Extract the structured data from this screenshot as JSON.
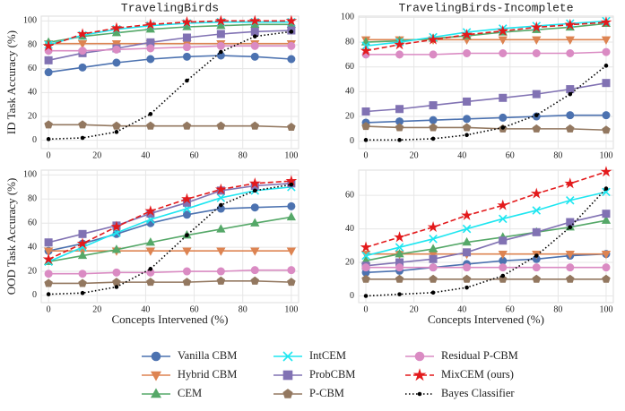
{
  "chart_data": [
    {
      "type": "line",
      "title": "TravelingBirds",
      "ylabel": "ID Task Accuracy (%)",
      "x": [
        0,
        14,
        28,
        42,
        57,
        71,
        85,
        100
      ],
      "xlim": [
        -3,
        103
      ],
      "xticks": [
        0,
        20,
        40,
        60,
        80,
        100
      ],
      "ylim": [
        -7,
        104
      ],
      "yticks": [
        0,
        20,
        40,
        60,
        80,
        100
      ],
      "grid": true,
      "series": [
        {
          "name": "Vanilla CBM",
          "color": "#4c72b0",
          "marker": "circle",
          "linestyle": "solid",
          "values": [
            57,
            61,
            65,
            68,
            70,
            71,
            70,
            68
          ]
        },
        {
          "name": "Hybrid CBM",
          "color": "#dd8452",
          "marker": "triangle-down",
          "linestyle": "solid",
          "values": [
            81,
            81,
            81,
            81,
            81,
            81,
            81,
            81
          ]
        },
        {
          "name": "CEM",
          "color": "#55a868",
          "marker": "triangle-up",
          "linestyle": "solid",
          "values": [
            82,
            87,
            90,
            93,
            95,
            96,
            97,
            97
          ]
        },
        {
          "name": "IntCEM",
          "color": "#1ee6f0",
          "marker": "x",
          "linestyle": "solid",
          "values": [
            80,
            88,
            93,
            96,
            98,
            99,
            99,
            99
          ]
        },
        {
          "name": "ProbCBM",
          "color": "#8172b3",
          "marker": "square",
          "linestyle": "solid",
          "values": [
            67,
            73,
            77,
            82,
            86,
            89,
            91,
            92
          ]
        },
        {
          "name": "P-CBM",
          "color": "#937860",
          "marker": "pentagon",
          "linestyle": "solid",
          "values": [
            13,
            13,
            12,
            12,
            12,
            12,
            12,
            11
          ]
        },
        {
          "name": "Residual P-CBM",
          "color": "#da8bc3",
          "marker": "circle",
          "linestyle": "solid",
          "values": [
            75,
            75,
            76,
            77,
            78,
            79,
            79,
            79
          ]
        },
        {
          "name": "MixCEM (ours)",
          "color": "#e31a1c",
          "marker": "star",
          "linestyle": "dashed",
          "values": [
            79,
            89,
            94,
            97,
            99,
            100,
            100,
            100
          ]
        },
        {
          "name": "Bayes Classifier",
          "color": "#000000",
          "marker": "dot",
          "linestyle": "dotted",
          "values": [
            1,
            2,
            7,
            22,
            50,
            74,
            87,
            91
          ]
        }
      ]
    },
    {
      "type": "line",
      "title": "TravelingBirds-Incomplete",
      "x": [
        0,
        14,
        28,
        42,
        57,
        71,
        85,
        100
      ],
      "xlim": [
        -3,
        103
      ],
      "xticks": [
        0,
        20,
        40,
        60,
        80,
        100
      ],
      "ylim": [
        -6,
        101
      ],
      "yticks": [
        0,
        20,
        40,
        60,
        80,
        100
      ],
      "grid": true,
      "series": [
        {
          "name": "Vanilla CBM",
          "color": "#4c72b0",
          "marker": "circle",
          "linestyle": "solid",
          "values": [
            15,
            16,
            17,
            18,
            19,
            20,
            21,
            21
          ]
        },
        {
          "name": "Hybrid CBM",
          "color": "#dd8452",
          "marker": "triangle-down",
          "linestyle": "solid",
          "values": [
            82,
            82,
            82,
            82,
            82,
            82,
            82,
            82
          ]
        },
        {
          "name": "CEM",
          "color": "#55a868",
          "marker": "triangle-up",
          "linestyle": "solid",
          "values": [
            80,
            81,
            83,
            85,
            88,
            90,
            92,
            95
          ]
        },
        {
          "name": "IntCEM",
          "color": "#1ee6f0",
          "marker": "x",
          "linestyle": "solid",
          "values": [
            77,
            80,
            84,
            88,
            91,
            93,
            95,
            97
          ]
        },
        {
          "name": "ProbCBM",
          "color": "#8172b3",
          "marker": "square",
          "linestyle": "solid",
          "values": [
            24,
            26,
            29,
            32,
            35,
            38,
            42,
            47
          ]
        },
        {
          "name": "P-CBM",
          "color": "#937860",
          "marker": "pentagon",
          "linestyle": "solid",
          "values": [
            12,
            11,
            11,
            11,
            10,
            10,
            10,
            9
          ]
        },
        {
          "name": "Residual P-CBM",
          "color": "#da8bc3",
          "marker": "circle",
          "linestyle": "solid",
          "values": [
            70,
            70,
            70,
            71,
            71,
            71,
            71,
            72
          ]
        },
        {
          "name": "MixCEM (ours)",
          "color": "#e31a1c",
          "marker": "star",
          "linestyle": "dashed",
          "values": [
            73,
            78,
            82,
            86,
            89,
            92,
            94,
            96
          ]
        },
        {
          "name": "Bayes Classifier",
          "color": "#000000",
          "marker": "dot",
          "linestyle": "dotted",
          "values": [
            1,
            1,
            2,
            5,
            11,
            21,
            38,
            61
          ]
        }
      ]
    },
    {
      "type": "line",
      "ylabel": "OOD Task Accuracy (%)",
      "xlabel": "Concepts Intervened (%)",
      "x": [
        0,
        14,
        28,
        42,
        57,
        71,
        85,
        100
      ],
      "xlim": [
        -3,
        103
      ],
      "xticks": [
        0,
        20,
        40,
        60,
        80,
        100
      ],
      "ylim": [
        -6,
        104
      ],
      "yticks": [
        0,
        20,
        40,
        60,
        80,
        100
      ],
      "grid": true,
      "series": [
        {
          "name": "Vanilla CBM",
          "color": "#4c72b0",
          "marker": "circle",
          "linestyle": "solid",
          "values": [
            37,
            43,
            51,
            60,
            67,
            72,
            73,
            74
          ]
        },
        {
          "name": "Hybrid CBM",
          "color": "#dd8452",
          "marker": "triangle-down",
          "linestyle": "solid",
          "values": [
            37,
            37,
            37,
            37,
            37,
            37,
            37,
            37
          ]
        },
        {
          "name": "CEM",
          "color": "#55a868",
          "marker": "triangle-up",
          "linestyle": "solid",
          "values": [
            28,
            33,
            38,
            44,
            50,
            55,
            60,
            65
          ]
        },
        {
          "name": "IntCEM",
          "color": "#1ee6f0",
          "marker": "x",
          "linestyle": "solid",
          "values": [
            28,
            40,
            52,
            63,
            72,
            81,
            87,
            90
          ]
        },
        {
          "name": "ProbCBM",
          "color": "#8172b3",
          "marker": "square",
          "linestyle": "solid",
          "values": [
            44,
            51,
            58,
            68,
            77,
            87,
            91,
            93
          ]
        },
        {
          "name": "P-CBM",
          "color": "#937860",
          "marker": "pentagon",
          "linestyle": "solid",
          "values": [
            10,
            10,
            11,
            11,
            11,
            12,
            12,
            11
          ]
        },
        {
          "name": "Residual P-CBM",
          "color": "#da8bc3",
          "marker": "circle",
          "linestyle": "solid",
          "values": [
            18,
            18,
            19,
            19,
            20,
            20,
            21,
            21
          ]
        },
        {
          "name": "MixCEM (ours)",
          "color": "#e31a1c",
          "marker": "star",
          "linestyle": "dashed",
          "values": [
            30,
            43,
            57,
            70,
            80,
            88,
            93,
            95
          ]
        },
        {
          "name": "Bayes Classifier",
          "color": "#000000",
          "marker": "dot",
          "linestyle": "dotted",
          "values": [
            1,
            2,
            7,
            22,
            50,
            75,
            87,
            92
          ]
        }
      ]
    },
    {
      "type": "line",
      "xlabel": "Concepts Intervened (%)",
      "x": [
        0,
        14,
        28,
        42,
        57,
        71,
        85,
        100
      ],
      "xlim": [
        -3,
        103
      ],
      "xticks": [
        0,
        20,
        40,
        60,
        80,
        100
      ],
      "ylim": [
        -4,
        75
      ],
      "yticks": [
        0,
        20,
        40,
        60
      ],
      "grid": true,
      "series": [
        {
          "name": "Vanilla CBM",
          "color": "#4c72b0",
          "marker": "circle",
          "linestyle": "solid",
          "values": [
            14,
            15,
            17,
            19,
            21,
            22,
            24,
            25
          ]
        },
        {
          "name": "Hybrid CBM",
          "color": "#dd8452",
          "marker": "triangle-down",
          "linestyle": "solid",
          "values": [
            25,
            25,
            25,
            25,
            25,
            25,
            25,
            25
          ]
        },
        {
          "name": "CEM",
          "color": "#55a868",
          "marker": "triangle-up",
          "linestyle": "solid",
          "values": [
            21,
            25,
            28,
            32,
            35,
            38,
            41,
            45
          ]
        },
        {
          "name": "IntCEM",
          "color": "#1ee6f0",
          "marker": "x",
          "linestyle": "solid",
          "values": [
            24,
            29,
            34,
            40,
            46,
            51,
            57,
            62
          ]
        },
        {
          "name": "ProbCBM",
          "color": "#8172b3",
          "marker": "square",
          "linestyle": "solid",
          "values": [
            18,
            20,
            22,
            26,
            33,
            38,
            44,
            49
          ]
        },
        {
          "name": "P-CBM",
          "color": "#937860",
          "marker": "pentagon",
          "linestyle": "solid",
          "values": [
            10,
            10,
            10,
            10,
            10,
            10,
            10,
            10
          ]
        },
        {
          "name": "Residual P-CBM",
          "color": "#da8bc3",
          "marker": "circle",
          "linestyle": "solid",
          "values": [
            17,
            17,
            17,
            17,
            17,
            17,
            17,
            17
          ]
        },
        {
          "name": "MixCEM (ours)",
          "color": "#e31a1c",
          "marker": "star",
          "linestyle": "dashed",
          "values": [
            29,
            35,
            41,
            48,
            54,
            61,
            67,
            74
          ]
        },
        {
          "name": "Bayes Classifier",
          "color": "#000000",
          "marker": "dot",
          "linestyle": "dotted",
          "values": [
            0,
            1,
            2,
            5,
            12,
            24,
            41,
            64
          ]
        }
      ]
    }
  ]
}
